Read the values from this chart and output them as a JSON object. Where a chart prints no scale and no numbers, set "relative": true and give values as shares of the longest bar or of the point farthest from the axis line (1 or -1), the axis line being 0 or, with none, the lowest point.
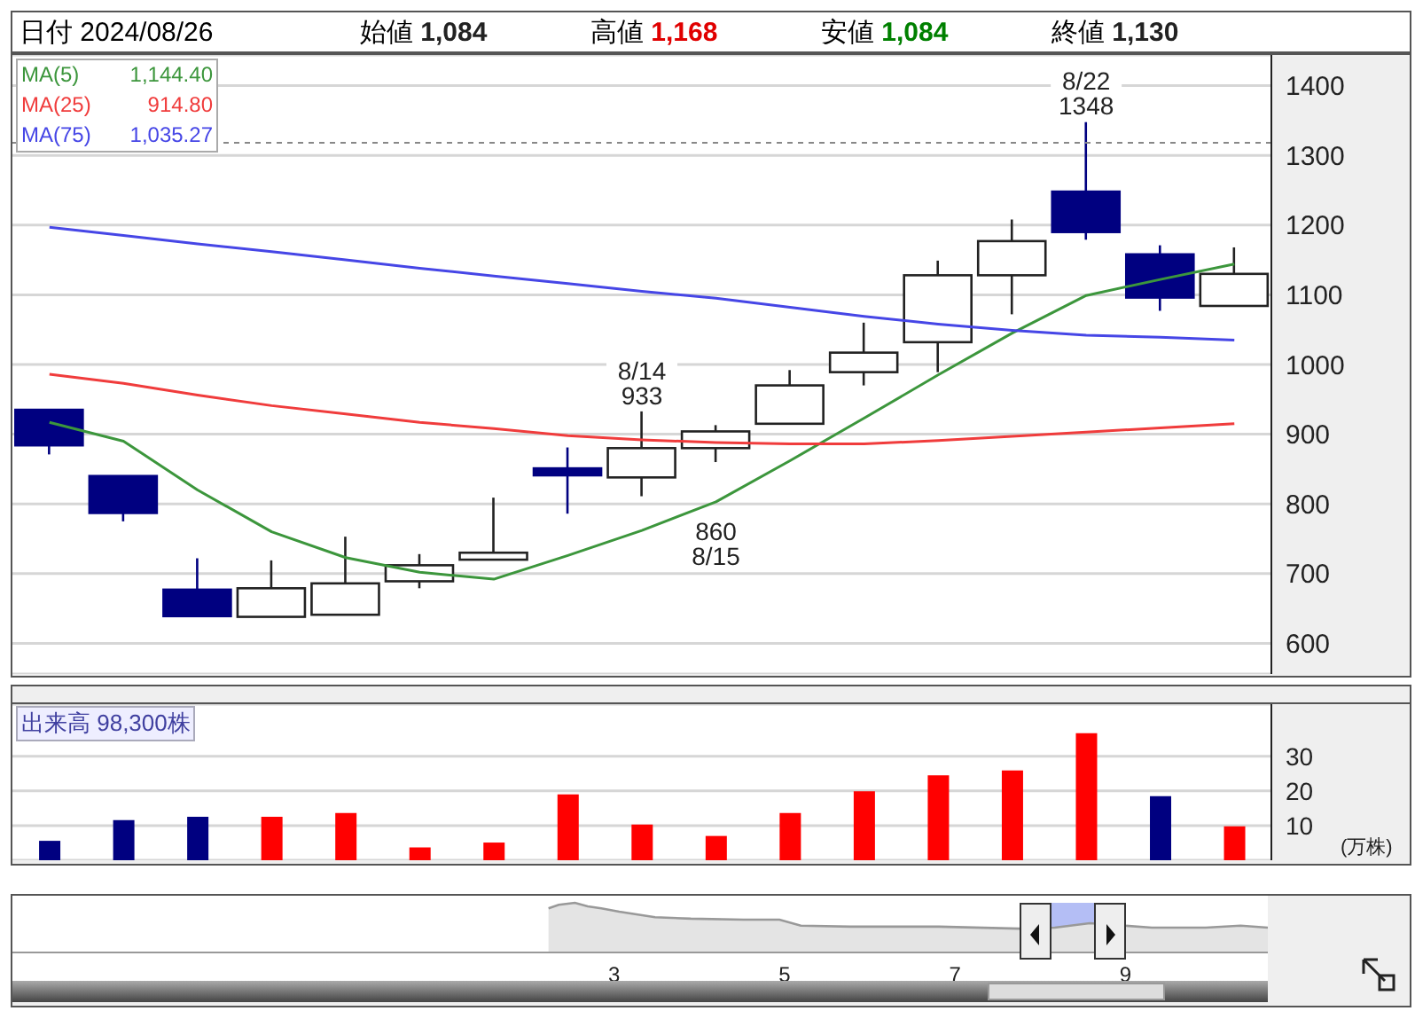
{
  "chart_data": [
    {
      "type": "candlestick",
      "title": "日付 2024/08/26",
      "categories": [
        null,
        null,
        null,
        null,
        null,
        null,
        null,
        null,
        null,
        null,
        null,
        null,
        null,
        null,
        null,
        null,
        null
      ],
      "ohlc": [
        [
          935,
          935,
          871,
          884
        ],
        [
          840,
          840,
          775,
          787
        ],
        [
          677,
          722,
          639,
          639
        ],
        [
          638,
          719,
          638,
          679
        ],
        [
          641,
          753,
          641,
          686
        ],
        [
          689,
          728,
          679,
          712
        ],
        [
          720,
          809,
          720,
          730
        ],
        [
          851,
          881,
          786,
          841
        ],
        [
          838,
          933,
          811,
          880
        ],
        [
          880,
          913,
          860,
          904
        ],
        [
          915,
          992,
          915,
          970
        ],
        [
          989,
          1060,
          970,
          1017
        ],
        [
          1032,
          1149,
          989,
          1128
        ],
        [
          1128,
          1208,
          1072,
          1177
        ],
        [
          1248,
          1348,
          1179,
          1190
        ],
        [
          1158,
          1171,
          1077,
          1096
        ],
        [
          1084,
          1168,
          1084,
          1130
        ]
      ],
      "colors": [
        "#000080",
        "#000080",
        "#000080",
        "#ffffff",
        "#ffffff",
        "#ffffff",
        "#ffffff",
        "#000080",
        "#ffffff",
        "#ffffff",
        "#ffffff",
        "#ffffff",
        "#ffffff",
        "#ffffff",
        "#000080",
        "#000080",
        "#ffffff"
      ],
      "series": [
        {
          "name": "MA(5)",
          "type": "line",
          "color": "#3c963c",
          "values": [
            917,
            890,
            820,
            760,
            723,
            702,
            692,
            726,
            762,
            803,
            862,
            923,
            985,
            1045,
            1099,
            1122,
            1144
          ]
        },
        {
          "name": "MA(25)",
          "type": "line",
          "color": "#f03c3c",
          "values": [
            986,
            973,
            956,
            941,
            929,
            917,
            908,
            898,
            892,
            888,
            886,
            886,
            891,
            897,
            903,
            909,
            915
          ]
        },
        {
          "name": "MA(75)",
          "type": "line",
          "color": "#4646e6",
          "values": [
            1197,
            1185,
            1173,
            1162,
            1150,
            1138,
            1127,
            1116,
            1105,
            1095,
            1082,
            1069,
            1058,
            1049,
            1042,
            1039,
            1035
          ]
        }
      ],
      "annotations": [
        "始値 1,084",
        "高値 1,168",
        "安値 1,084",
        "終値 1,130",
        "1,144.40",
        "914.80",
        "1,035.27",
        {
          "text": "8/14\n933",
          "y": 933
        },
        {
          "text": "860\n8/15",
          "y": 860
        },
        {
          "text": "8/22\n1348",
          "y": 1348
        }
      ],
      "ylim": [
        556,
        1444
      ],
      "yticks": [
        600,
        700,
        800,
        900,
        1000,
        1100,
        1200,
        1300,
        1400
      ],
      "grid": "y",
      "legend": "top left",
      "line_style": "solid",
      "marker": "none",
      "ref_lines": [
        {
          "axis": "y",
          "value": 1318,
          "line_style": "dashed",
          "color": "#888888"
        }
      ]
    },
    {
      "type": "bar",
      "title": "出来高 98,300株",
      "ylabel": "(万株)",
      "categories": [
        null,
        null,
        null,
        null,
        null,
        null,
        null,
        null,
        null,
        null,
        null,
        null,
        null,
        null,
        null,
        null,
        null
      ],
      "values": [
        5.6,
        11.6,
        12.5,
        12.5,
        13.6,
        3.7,
        5.1,
        19.0,
        10.3,
        7.0,
        13.6,
        19.9,
        24.5,
        25.9,
        36.6,
        18.5,
        9.8
      ],
      "colors": [
        "#000080",
        "#000080",
        "#000080",
        "#ff0000",
        "#ff0000",
        "#ff0000",
        "#ff0000",
        "#ff0000",
        "#ff0000",
        "#ff0000",
        "#ff0000",
        "#ff0000",
        "#ff0000",
        "#ff0000",
        "#ff0000",
        "#000080",
        "#ff0000"
      ],
      "ylim": [
        0,
        45
      ],
      "yticks": [
        10,
        20,
        30
      ],
      "grid": "y"
    },
    {
      "type": "area",
      "relative": true,
      "color": "#999999",
      "x": [
        2.23,
        2.35,
        2.54,
        2.69,
        2.85,
        3.06,
        3.48,
        3.9,
        4.52,
        4.94,
        5.19,
        5.77,
        6.81,
        7.75,
        8.17,
        8.58,
        9.31,
        9.94,
        10.35,
        10.67
      ],
      "values": [
        0.89,
        0.96,
        1,
        0.93,
        0.89,
        0.82,
        0.71,
        0.68,
        0.66,
        0.66,
        0.54,
        0.52,
        0.52,
        0.48,
        0.5,
        0.59,
        0.5,
        0.5,
        0.54,
        0.5
      ],
      "xlim": [
        -4.06,
        10.67
      ],
      "xticks": [
        3,
        5,
        7,
        9
      ],
      "bands": [
        {
          "axis": "x",
          "from": 7.94,
          "to": 8.81,
          "color": "#b4bef5"
        }
      ]
    }
  ]
}
